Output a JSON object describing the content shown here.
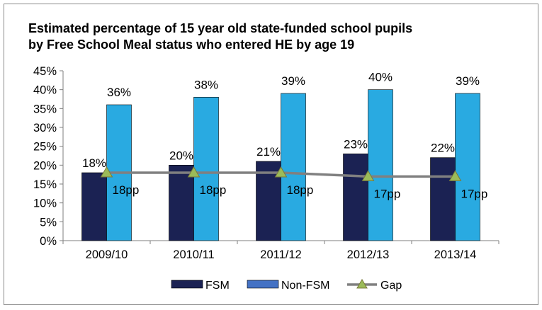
{
  "chart_data": {
    "type": "bar",
    "title_lines": [
      "Estimated percentage of 15 year old state-funded school pupils",
      "by Free School Meal status who entered HE by age 19"
    ],
    "categories": [
      "2009/10",
      "2010/11",
      "2011/12",
      "2012/13",
      "2013/14"
    ],
    "series": [
      {
        "name": "FSM",
        "kind": "bar",
        "color": "#1b2253",
        "values": [
          18,
          20,
          21,
          23,
          22
        ],
        "labels": [
          "18%",
          "20%",
          "21%",
          "23%",
          "22%"
        ]
      },
      {
        "name": "Non-FSM",
        "kind": "bar",
        "color": "#29aae1",
        "values": [
          36,
          38,
          39,
          40,
          39
        ],
        "labels": [
          "36%",
          "38%",
          "39%",
          "40%",
          "39%"
        ]
      },
      {
        "name": "Gap",
        "kind": "line",
        "color": "#808080",
        "marker_color": "#9bbb59",
        "values": [
          18,
          18,
          18,
          17,
          17
        ],
        "labels": [
          "18pp",
          "18pp",
          "18pp",
          "17pp",
          "17pp"
        ]
      }
    ],
    "yticks": [
      "0%",
      "5%",
      "10%",
      "15%",
      "20%",
      "25%",
      "30%",
      "35%",
      "40%",
      "45%"
    ],
    "ylim": [
      0,
      45
    ],
    "xlabel": "",
    "ylabel": "",
    "legend": [
      "FSM",
      "Non-FSM",
      "Gap"
    ],
    "legend_position": "bottom",
    "grid": false
  }
}
